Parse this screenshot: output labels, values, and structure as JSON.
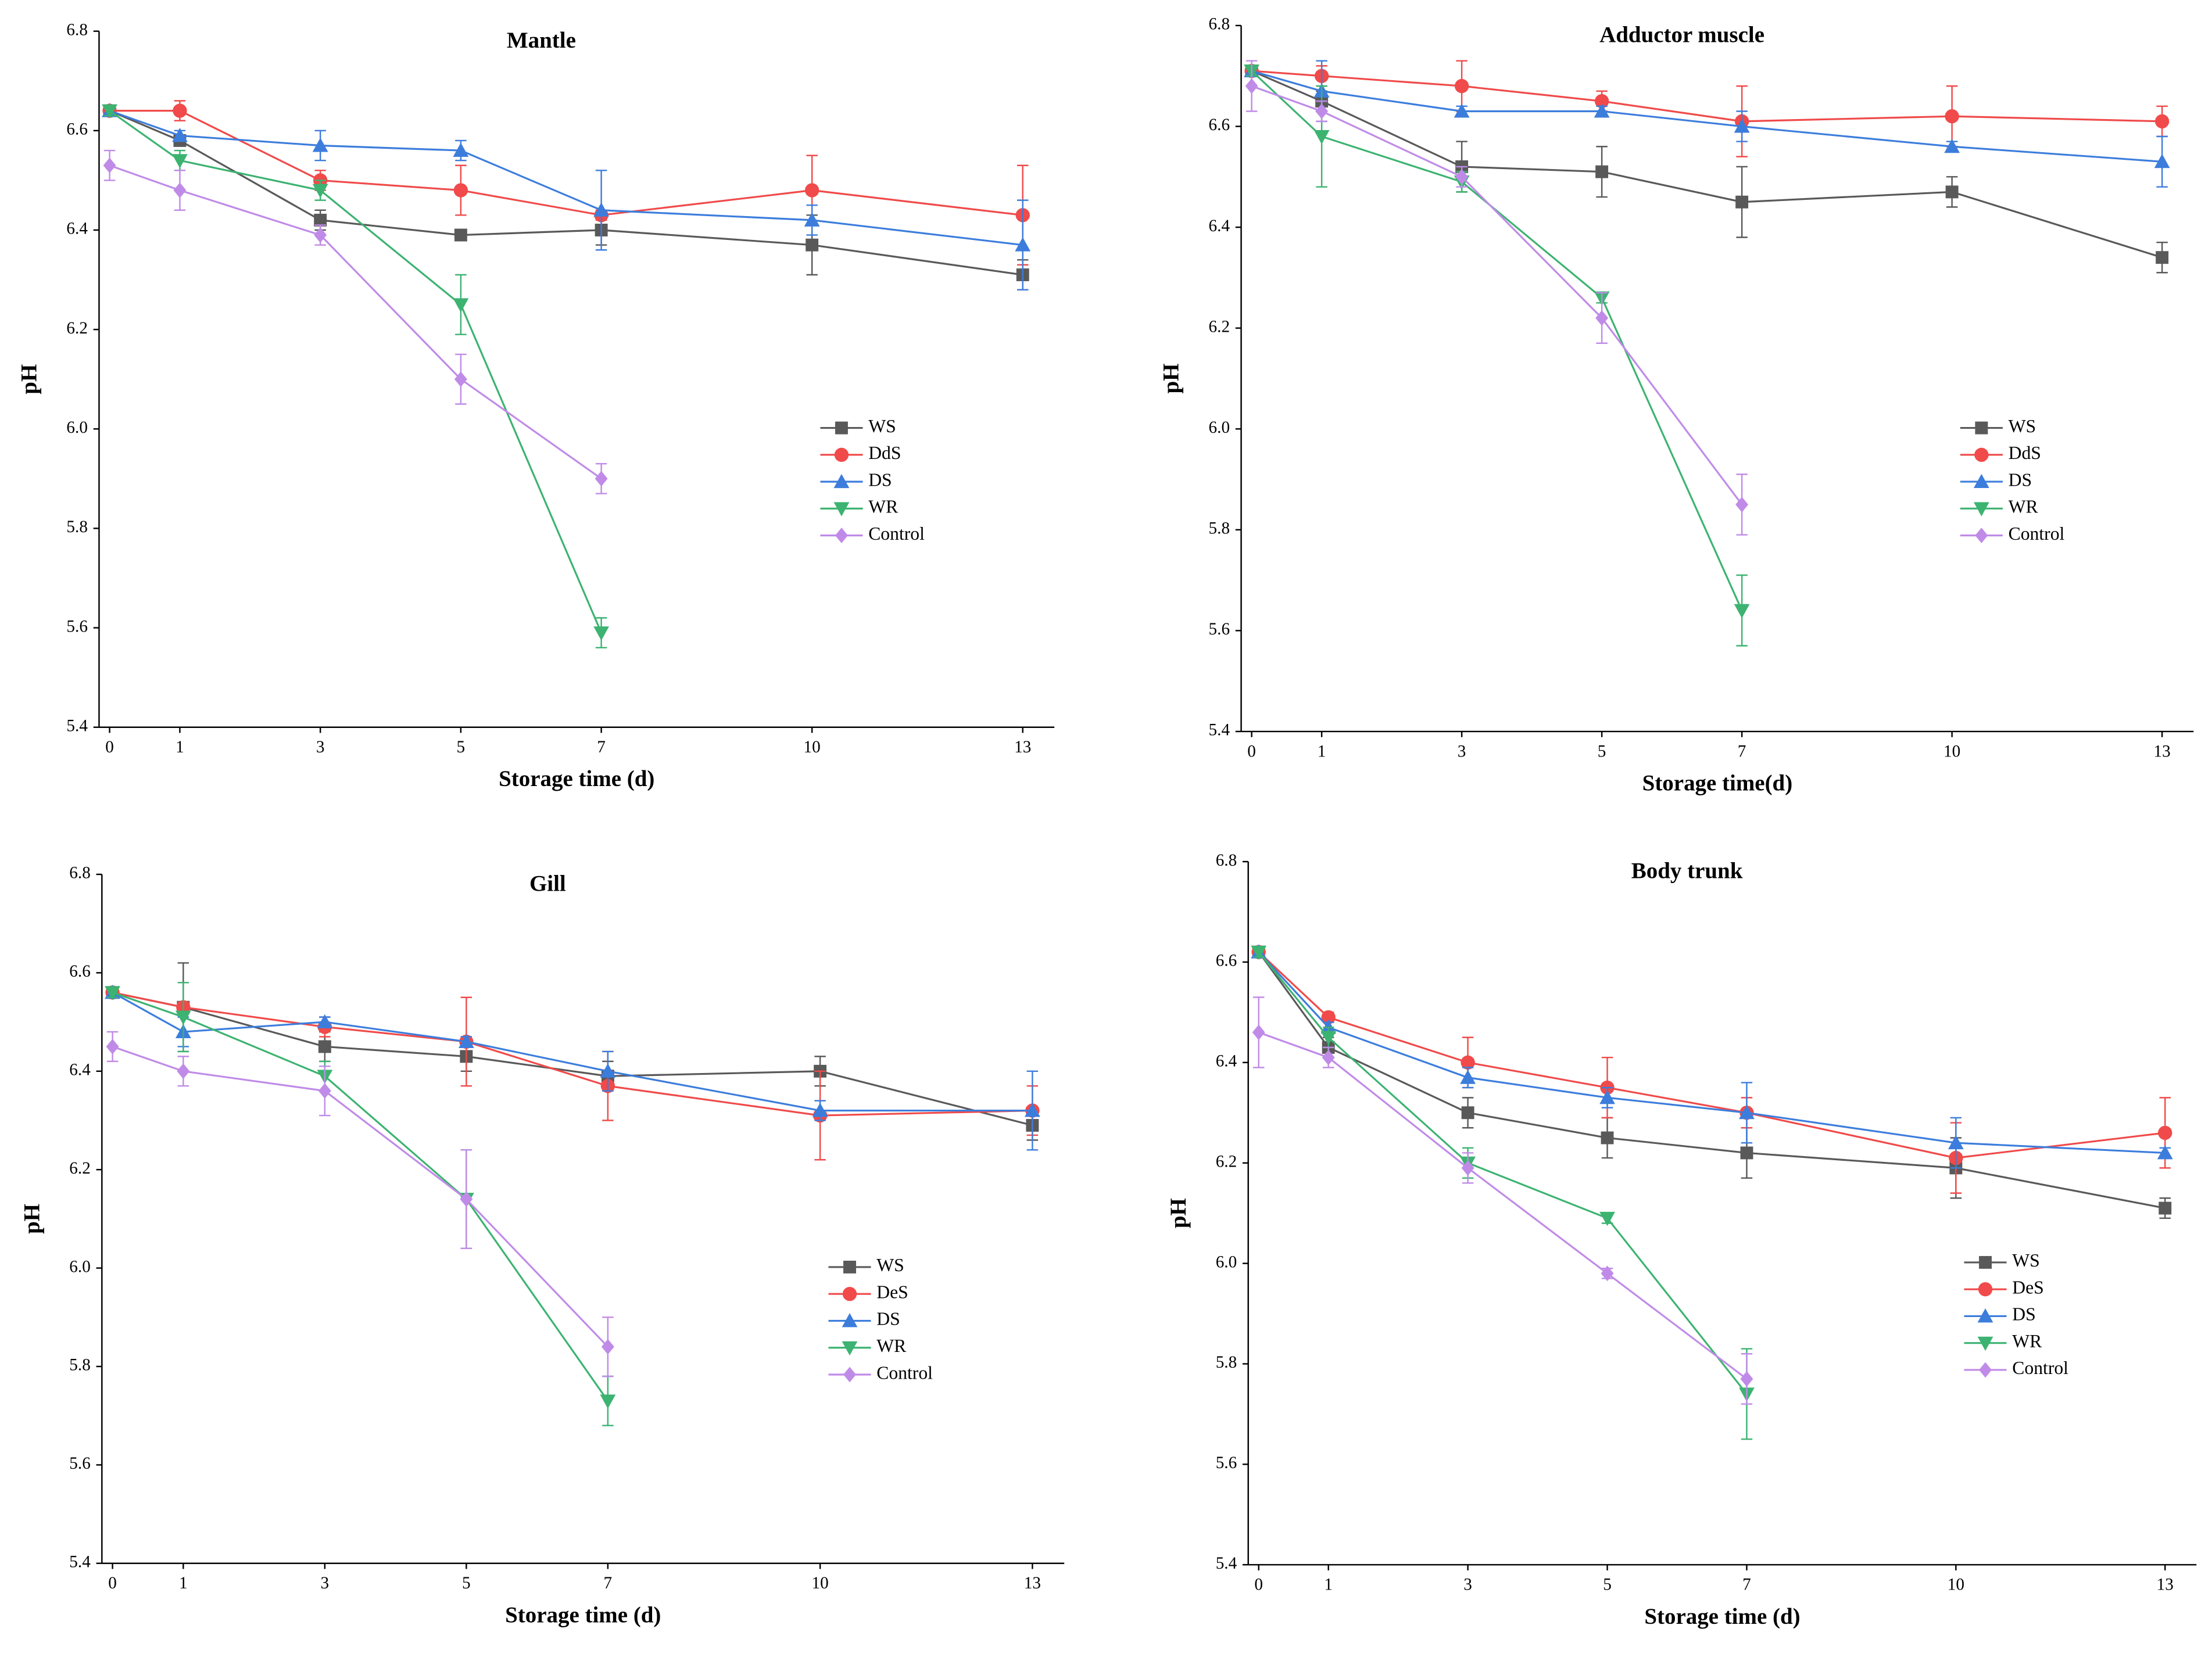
{
  "chart_data": [
    {
      "type": "line",
      "title": "Mantle",
      "x_label": "Storage time (d)",
      "y_label": "pH",
      "x": [
        0,
        1,
        3,
        5,
        7,
        10,
        13
      ],
      "xlim": [
        -0.15,
        13.45
      ],
      "xticks": [
        0,
        1,
        3,
        5,
        7,
        10,
        13
      ],
      "ylim": [
        5.4,
        6.8
      ],
      "yticks": [
        5.4,
        5.6,
        5.8,
        {
          "value": 6,
          "label": "6.0"
        },
        6.2,
        6.4,
        6.6,
        6.8
      ],
      "legend": "center right",
      "series": [
        {
          "name": "WS",
          "color": "#595959",
          "marker": "square",
          "values": [
            6.64,
            6.58,
            6.42,
            6.39,
            6.4,
            6.37,
            6.31
          ],
          "errors": [
            0.01,
            0.01,
            0.02,
            0.01,
            0.03,
            0.06,
            0.03
          ]
        },
        {
          "name": "DdS",
          "color": "#f04a4a",
          "marker": "circle",
          "values": [
            6.64,
            6.64,
            6.5,
            6.48,
            6.43,
            6.48,
            6.43
          ],
          "errors": [
            0.01,
            0.02,
            0.02,
            0.05,
            0.01,
            0.07,
            0.1
          ]
        },
        {
          "name": "DS",
          "color": "#3c7ddc",
          "marker": "triangle",
          "values": [
            6.64,
            6.59,
            6.57,
            6.56,
            6.44,
            6.42,
            6.37
          ],
          "errors": [
            0.01,
            0.01,
            0.03,
            0.02,
            0.08,
            0.03,
            0.09
          ]
        },
        {
          "name": "WR",
          "color": "#3cb371",
          "marker": "triangle-down",
          "values": [
            6.64,
            6.54,
            6.48,
            6.25,
            5.59,
            null,
            null
          ],
          "errors": [
            0.01,
            0.02,
            0.02,
            0.06,
            0.03,
            null,
            null
          ]
        },
        {
          "name": "Control",
          "color": "#c08be8",
          "marker": "diamond",
          "values": [
            6.53,
            6.48,
            6.39,
            6.1,
            5.9,
            null,
            null
          ],
          "errors": [
            0.03,
            0.04,
            0.02,
            0.05,
            0.03,
            null,
            null
          ]
        }
      ]
    },
    {
      "type": "line",
      "title": "Adductor muscle",
      "x_label": "Storage time(d)",
      "y_label": "pH",
      "x": [
        0,
        1,
        3,
        5,
        7,
        10,
        13
      ],
      "xlim": [
        -0.15,
        13.45
      ],
      "xticks": [
        0,
        1,
        3,
        5,
        7,
        10,
        13
      ],
      "ylim": [
        5.4,
        6.8
      ],
      "yticks": [
        5.4,
        5.6,
        5.8,
        {
          "value": 6,
          "label": "6.0"
        },
        6.2,
        6.4,
        6.6,
        6.8
      ],
      "legend": "center right",
      "series": [
        {
          "name": "WS",
          "color": "#595959",
          "marker": "square",
          "values": [
            6.71,
            6.65,
            6.52,
            6.51,
            6.45,
            6.47,
            6.34
          ],
          "errors": [
            0.01,
            0.02,
            0.05,
            0.05,
            0.07,
            0.03,
            0.03
          ]
        },
        {
          "name": "DdS",
          "color": "#f04a4a",
          "marker": "circle",
          "values": [
            6.71,
            6.7,
            6.68,
            6.65,
            6.61,
            6.62,
            6.61
          ],
          "errors": [
            0.01,
            0.02,
            0.05,
            0.02,
            0.07,
            0.06,
            0.03
          ]
        },
        {
          "name": "DS",
          "color": "#3c7ddc",
          "marker": "triangle",
          "values": [
            6.71,
            6.67,
            6.63,
            6.63,
            6.6,
            6.56,
            6.53
          ],
          "errors": [
            0.01,
            0.06,
            0.01,
            0.01,
            0.03,
            0.01,
            0.05
          ]
        },
        {
          "name": "WR",
          "color": "#3cb371",
          "marker": "triangle-down",
          "values": [
            6.71,
            6.58,
            6.49,
            6.26,
            5.64,
            null,
            null
          ],
          "errors": [
            0.01,
            0.1,
            0.02,
            0.01,
            0.07,
            null,
            null
          ]
        },
        {
          "name": "Control",
          "color": "#c08be8",
          "marker": "diamond",
          "values": [
            6.68,
            6.63,
            6.5,
            6.22,
            5.85,
            null,
            null
          ],
          "errors": [
            0.05,
            0.02,
            0.02,
            0.05,
            0.06,
            null,
            null
          ]
        }
      ]
    },
    {
      "type": "line",
      "title": "Gill",
      "x_label": "Storage time (d)",
      "y_label": "pH",
      "x": [
        0,
        1,
        3,
        5,
        7,
        10,
        13
      ],
      "xlim": [
        -0.15,
        13.45
      ],
      "xticks": [
        0,
        1,
        3,
        5,
        7,
        10,
        13
      ],
      "ylim": [
        5.4,
        6.8
      ],
      "yticks": [
        5.4,
        5.6,
        5.8,
        {
          "value": 6,
          "label": "6.0"
        },
        6.2,
        6.4,
        6.6,
        6.8
      ],
      "legend": "center right",
      "series": [
        {
          "name": "WS",
          "color": "#595959",
          "marker": "square",
          "values": [
            6.56,
            6.53,
            6.45,
            6.43,
            6.39,
            6.4,
            6.29
          ],
          "errors": [
            0.01,
            0.09,
            0.03,
            0.03,
            0.03,
            0.03,
            0.03
          ]
        },
        {
          "name": "DeS",
          "color": "#f04a4a",
          "marker": "circle",
          "values": [
            6.56,
            6.53,
            6.49,
            6.46,
            6.37,
            6.31,
            6.32
          ],
          "errors": [
            0.01,
            0.01,
            0.02,
            0.09,
            0.07,
            0.09,
            0.05
          ]
        },
        {
          "name": "DS",
          "color": "#3c7ddc",
          "marker": "triangle",
          "values": [
            6.56,
            6.48,
            6.5,
            6.46,
            6.4,
            6.32,
            6.32
          ],
          "errors": [
            0.01,
            0.03,
            0.01,
            0.01,
            0.04,
            0.02,
            0.08
          ]
        },
        {
          "name": "WR",
          "color": "#3cb371",
          "marker": "triangle-down",
          "values": [
            6.56,
            6.51,
            6.39,
            6.14,
            5.73,
            null,
            null
          ],
          "errors": [
            0.01,
            0.07,
            0.03,
            0.1,
            0.05,
            null,
            null
          ]
        },
        {
          "name": "Control",
          "color": "#c08be8",
          "marker": "diamond",
          "values": [
            6.45,
            6.4,
            6.36,
            6.14,
            5.84,
            null,
            null
          ],
          "errors": [
            0.03,
            0.03,
            0.05,
            0.1,
            0.06,
            null,
            null
          ]
        }
      ]
    },
    {
      "type": "line",
      "title": "Body trunk",
      "x_label": "Storage time (d)",
      "y_label": "pH",
      "x": [
        0,
        1,
        3,
        5,
        7,
        10,
        13
      ],
      "xlim": [
        -0.15,
        13.45
      ],
      "xticks": [
        0,
        1,
        3,
        5,
        7,
        10,
        13
      ],
      "ylim": [
        5.4,
        6.8
      ],
      "yticks": [
        5.4,
        5.6,
        5.8,
        {
          "value": 6,
          "label": "6.0"
        },
        6.2,
        6.4,
        6.6,
        6.8
      ],
      "legend": "center right",
      "series": [
        {
          "name": "WS",
          "color": "#595959",
          "marker": "square",
          "values": [
            6.62,
            6.43,
            6.3,
            6.25,
            6.22,
            6.19,
            6.11
          ],
          "errors": [
            0.01,
            0.02,
            0.03,
            0.04,
            0.05,
            0.06,
            0.02
          ]
        },
        {
          "name": "DeS",
          "color": "#f04a4a",
          "marker": "circle",
          "values": [
            6.62,
            6.49,
            6.4,
            6.35,
            6.3,
            6.21,
            6.26
          ],
          "errors": [
            0.01,
            0.01,
            0.05,
            0.06,
            0.03,
            0.07,
            0.07
          ]
        },
        {
          "name": "DS",
          "color": "#3c7ddc",
          "marker": "triangle",
          "values": [
            6.62,
            6.47,
            6.37,
            6.33,
            6.3,
            6.24,
            6.22
          ],
          "errors": [
            0.01,
            0.01,
            0.02,
            0.02,
            0.06,
            0.05,
            0.01
          ]
        },
        {
          "name": "WR",
          "color": "#3cb371",
          "marker": "triangle-down",
          "values": [
            6.62,
            6.45,
            6.2,
            6.09,
            5.74,
            null,
            null
          ],
          "errors": [
            0.01,
            0.02,
            0.03,
            0.01,
            0.09,
            null,
            null
          ]
        },
        {
          "name": "Control",
          "color": "#c08be8",
          "marker": "diamond",
          "values": [
            6.46,
            6.41,
            6.19,
            5.98,
            5.77,
            null,
            null
          ],
          "errors": [
            0.07,
            0.02,
            0.03,
            0.01,
            0.05,
            null,
            null
          ]
        }
      ]
    }
  ]
}
